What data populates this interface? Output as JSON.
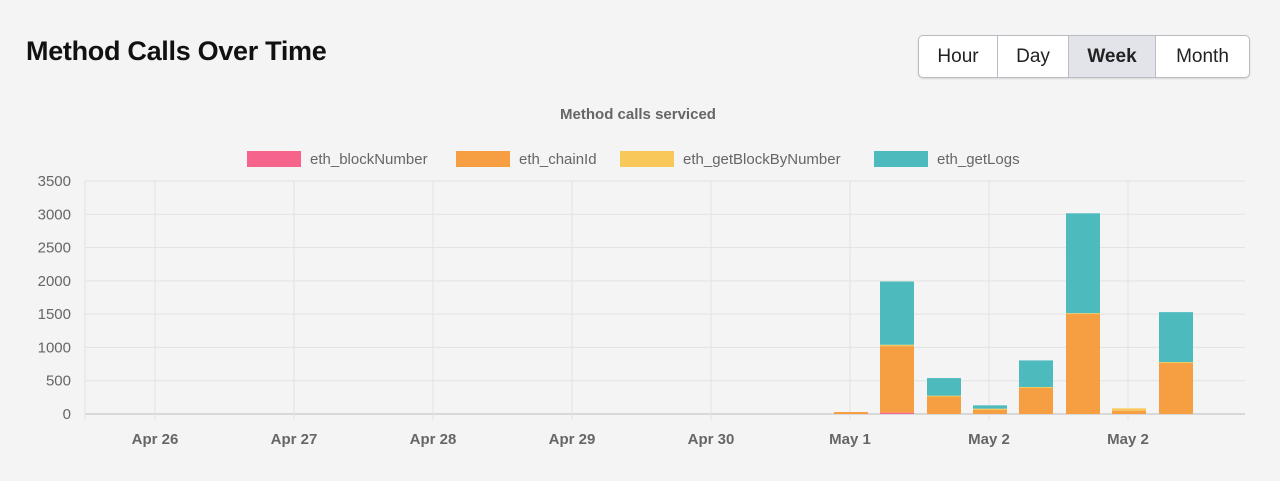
{
  "page": {
    "title": "Method Calls Over Time"
  },
  "range_toggle": {
    "options": [
      {
        "label": "Hour",
        "active": false
      },
      {
        "label": "Day",
        "active": false
      },
      {
        "label": "Week",
        "active": true
      },
      {
        "label": "Month",
        "active": false
      }
    ]
  },
  "chart_data": {
    "type": "bar",
    "stacked": true,
    "title": "Method calls serviced",
    "legend_position": "top",
    "grid": true,
    "ylim": [
      0,
      3500
    ],
    "y_ticks": [
      0,
      500,
      1000,
      1500,
      2000,
      2500,
      3000,
      3500
    ],
    "x_tick_labels": [
      "Apr 26",
      "Apr 27",
      "Apr 28",
      "Apr 29",
      "Apr 30",
      "May 1",
      "May 2",
      "May 2"
    ],
    "series": [
      {
        "name": "eth_blockNumber",
        "color": "#f6648b"
      },
      {
        "name": "eth_chainId",
        "color": "#f59e42"
      },
      {
        "name": "eth_getBlockByNumber",
        "color": "#f8c95a"
      },
      {
        "name": "eth_getLogs",
        "color": "#4dbbbd"
      }
    ],
    "bars": [
      {
        "values": [
          0,
          30,
          0,
          0
        ]
      },
      {
        "values": [
          20,
          1000,
          20,
          950
        ]
      },
      {
        "values": [
          0,
          265,
          10,
          265
        ]
      },
      {
        "values": [
          0,
          60,
          20,
          50
        ]
      },
      {
        "values": [
          0,
          400,
          5,
          400
        ]
      },
      {
        "values": [
          0,
          1510,
          5,
          1500
        ]
      },
      {
        "values": [
          0,
          50,
          35,
          0
        ]
      },
      {
        "values": [
          0,
          770,
          10,
          750
        ]
      }
    ]
  }
}
